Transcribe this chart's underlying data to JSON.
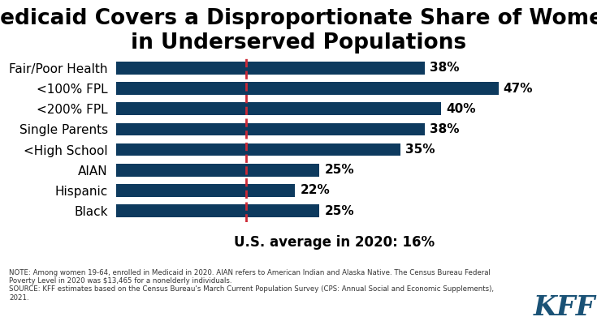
{
  "title": "Medicaid Covers a Disproportionate Share of Women\nin Underserved Populations",
  "categories": [
    "Fair/Poor Health",
    "<100% FPL",
    "<200% FPL",
    "Single Parents",
    "<High School",
    "AIAN",
    "Hispanic",
    "Black"
  ],
  "values": [
    38,
    47,
    40,
    38,
    35,
    25,
    22,
    25
  ],
  "bar_color": "#0d3a5e",
  "label_fontsize": 11,
  "value_fontsize": 11,
  "title_fontsize": 19,
  "xlim": [
    0,
    54
  ],
  "average_line_x": 16,
  "average_label": "U.S. average in 2020: 16%",
  "average_line_color": "#cc2936",
  "note_text": "NOTE: Among women 19-64, enrolled in Medicaid in 2020. AIAN refers to American Indian and Alaska Native. The Census Bureau Federal\nPoverty Level in 2020 was $13,465 for a nonelderly individuals.\nSOURCE: KFF estimates based on the Census Bureau's March Current Population Survey (CPS: Annual Social and Economic Supplements),\n2021.",
  "background_color": "#ffffff",
  "kff_color": "#1a5276"
}
